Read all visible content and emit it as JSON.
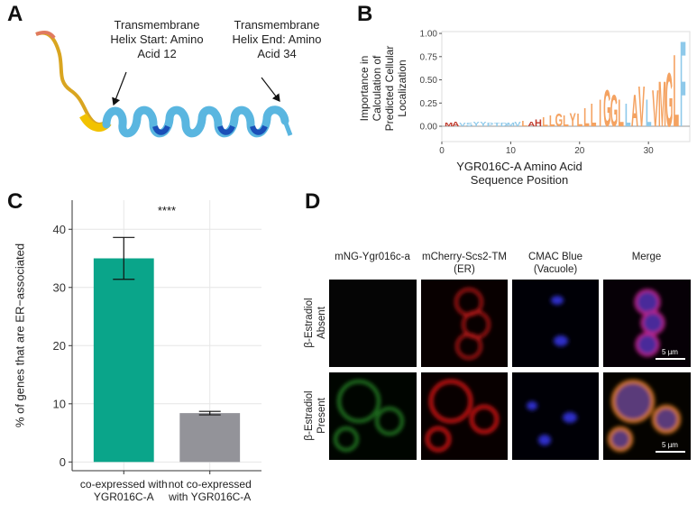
{
  "panel_labels": [
    "A",
    "B",
    "C",
    "D"
  ],
  "panel_a": {
    "annotations": [
      "Transmembrane Helix Start: Amino Acid 12",
      "Transmembrane Helix End: Amino Acid 34"
    ]
  },
  "chart_data": [
    {
      "type": "logo",
      "y_label": "Importance in Calculation of Predicted Cellular Localization",
      "x_label": "YGR016C-A Amino Acid Sequence Position",
      "x": [
        1,
        2,
        3,
        4,
        5,
        6,
        7,
        8,
        9,
        10,
        11,
        12,
        13,
        14,
        15,
        16,
        17,
        18,
        19,
        20,
        21,
        22,
        23,
        24,
        25,
        26,
        27,
        28,
        29,
        30,
        31,
        32,
        33,
        34,
        35
      ],
      "letters": [
        "M",
        "A",
        "V",
        "S",
        "Y",
        "Y",
        "P",
        "T",
        "D",
        "M",
        "V",
        "L",
        "A",
        "H",
        "L",
        "L",
        "G",
        "L",
        "Y",
        "L",
        "L",
        "L",
        "I",
        "G",
        "G",
        "L",
        "L",
        "A",
        "V",
        "L",
        "V",
        "M",
        "G",
        "L",
        "F"
      ],
      "values": [
        0.04,
        0.05,
        0.04,
        0.04,
        0.05,
        0.05,
        0.04,
        0.04,
        0.04,
        0.04,
        0.05,
        0.06,
        0.05,
        0.08,
        0.1,
        0.12,
        0.14,
        0.12,
        0.15,
        0.14,
        0.2,
        0.25,
        0.3,
        0.4,
        0.35,
        0.3,
        0.25,
        0.35,
        0.45,
        0.3,
        0.4,
        0.5,
        0.6,
        0.8,
        0.95
      ],
      "colors": [
        "#c0392b",
        "#c0392b",
        "#8ec9ea",
        "#8ec9ea",
        "#8ec9ea",
        "#8ec9ea",
        "#8ec9ea",
        "#8ec9ea",
        "#8ec9ea",
        "#8ec9ea",
        "#8ec9ea",
        "#f4a261",
        "#c0392b",
        "#c0392b",
        "#f4a261",
        "#f4a261",
        "#f4a261",
        "#f4a261",
        "#f4a261",
        "#f4a261",
        "#f4a261",
        "#f4a261",
        "#f4a261",
        "#f4a261",
        "#f4a261",
        "#f4a261",
        "#8ec9ea",
        "#f4a261",
        "#f4a261",
        "#8ec9ea",
        "#f4a261",
        "#f4a261",
        "#f4a261",
        "#f4a261",
        "#8ec9ea"
      ],
      "xlim": [
        0,
        36
      ],
      "ylim": [
        -0.165,
        1.02
      ],
      "xticks": [
        0,
        10,
        20,
        30
      ],
      "yticks": [
        {
          "value": 0,
          "label": "0.00"
        },
        {
          "value": 0.25,
          "label": "0.25"
        },
        {
          "value": 0.5,
          "label": "0.50"
        },
        {
          "value": 0.75,
          "label": "0.75"
        },
        {
          "value": 1,
          "label": "1.00"
        }
      ]
    },
    {
      "type": "bar",
      "y_label": "% of genes that are ER−associated",
      "categories": [
        "co-expressed with YGR016C-A",
        "not co-expressed with YGR016C-A"
      ],
      "values": [
        35,
        8.4
      ],
      "errors": [
        3.6,
        0.3
      ],
      "colors": [
        "#0aa58a",
        "#939399"
      ],
      "annotation": "****",
      "ylim": [
        -1.5,
        45
      ],
      "yticks": [
        0,
        10,
        20,
        30,
        40
      ],
      "grid": true
    }
  ],
  "panel_d": {
    "columns": [
      "mNG-Ygr016c-a",
      "mCherry-Scs2-TM (ER)",
      "CMAC Blue (Vacuole)",
      "Merge"
    ],
    "rows": [
      "β-Estradiol Absent",
      "β-Estradiol Present"
    ],
    "scale_bar": "5 µm"
  }
}
